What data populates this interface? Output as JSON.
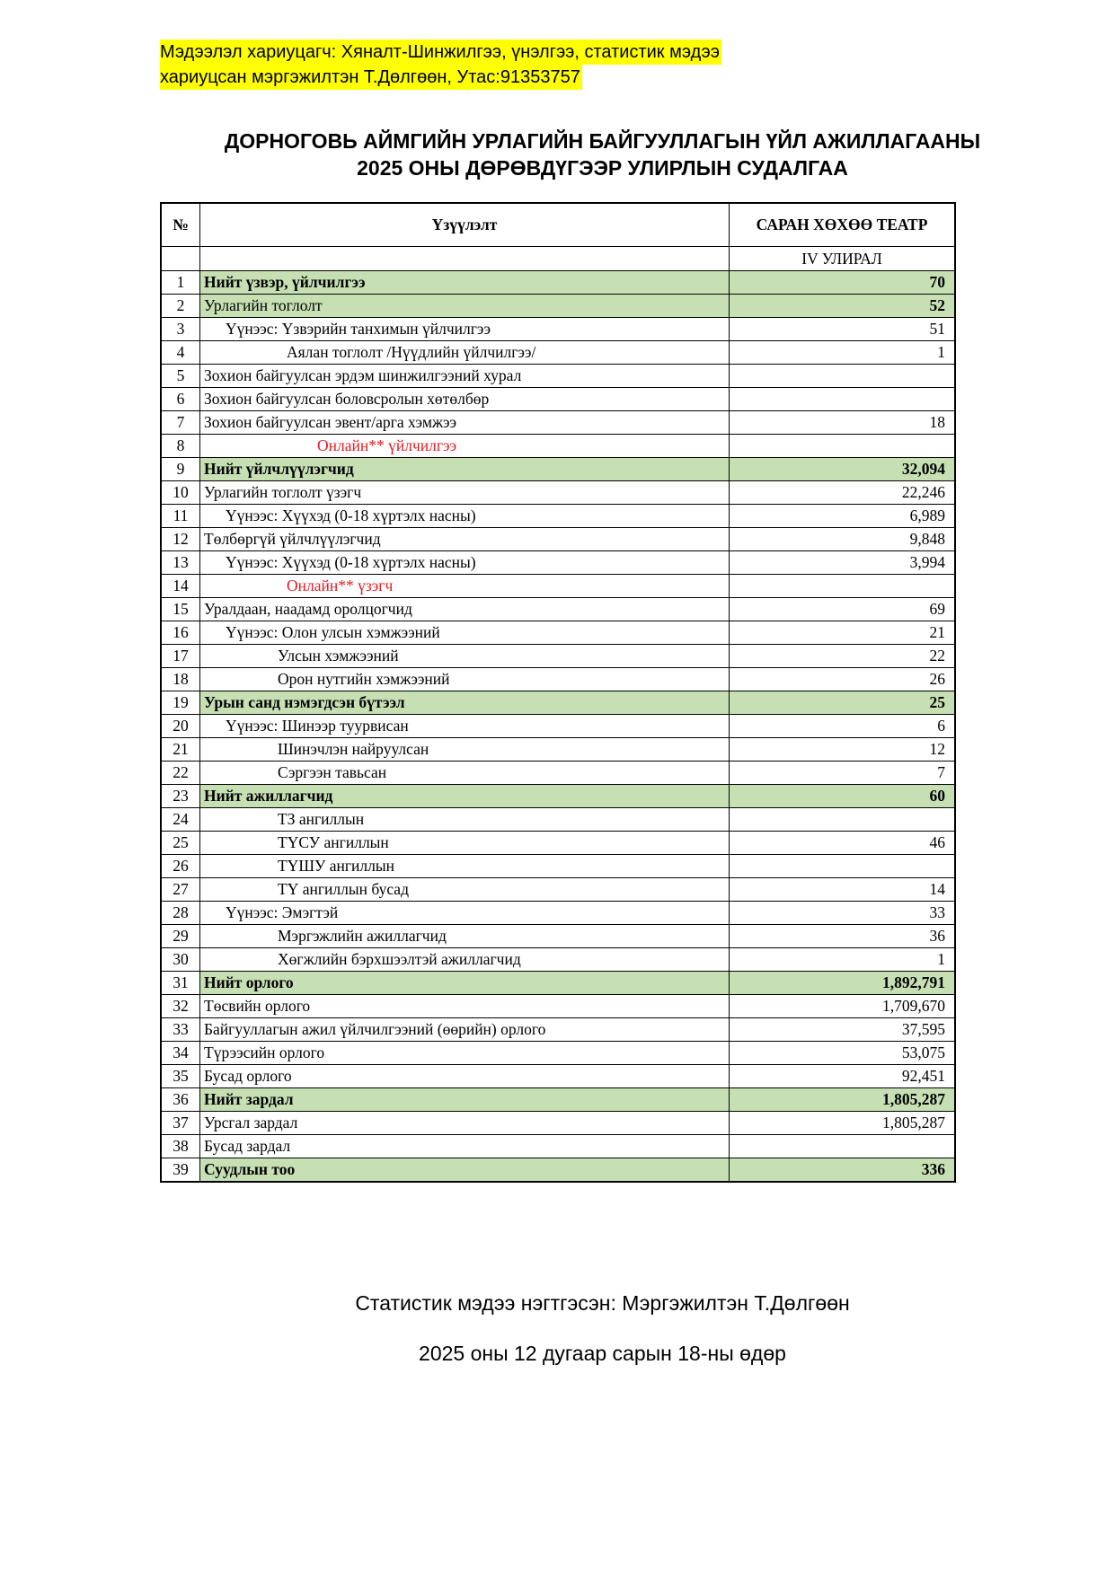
{
  "contact": {
    "line1": "Мэдээлэл хариуцагч: Хяналт-Шинжилгээ, үнэлгээ, статистик мэдээ",
    "line2": "хариуцсан мэргэжилтэн Т.Дөлгөөн, Утас:91353757"
  },
  "title": {
    "line1": "ДОРНОГОВЬ АЙМГИЙН УРЛАГИЙН БАЙГУУЛЛАГЫН ҮЙЛ АЖИЛЛАГААНЫ",
    "line2": "2025 ОНЫ ДӨРӨВДҮГЭЭР УЛИРЛЫН СУДАЛГАА"
  },
  "table": {
    "headers": {
      "num": "№",
      "indicator": "Үзүүлэлт",
      "org": "САРАН ХӨХӨӨ ТЕАТР"
    },
    "period": "IV УЛИРАЛ",
    "highlight_color": "#c6e0b4",
    "rows": [
      {
        "num": "1",
        "label": "Нийт үзвэр, үйлчилгээ",
        "value": "70",
        "level": 0,
        "bold_label": true,
        "bold_value": true,
        "green": true
      },
      {
        "num": "2",
        "label": "Урлагийн тоглолт",
        "value": "52",
        "level": 0,
        "bold_value": true,
        "green": true
      },
      {
        "num": "3",
        "label": "Үүнээс: Үзвэрийн танхимын үйлчилгээ",
        "value": "51",
        "level": 1
      },
      {
        "num": "4",
        "label": "Аялан тоглолт /Нүүдлийн үйлчилгээ/",
        "value": "1",
        "level": 3
      },
      {
        "num": "5",
        "label": "Зохион байгуулсан эрдэм шинжилгээний хурал",
        "value": "",
        "level": 0
      },
      {
        "num": "6",
        "label": "Зохион байгуулсан боловсролын хөтөлбөр",
        "value": "",
        "level": 0
      },
      {
        "num": "7",
        "label": "Зохион байгуулсан эвент/арга хэмжээ",
        "value": "18",
        "level": 0
      },
      {
        "num": "8",
        "label": "Онлайн** үйлчилгээ",
        "value": "",
        "level": 4,
        "red": true
      },
      {
        "num": "9",
        "label": "Нийт үйлчлүүлэгчид",
        "value": "32,094",
        "level": 0,
        "bold_label": true,
        "bold_value": true,
        "green": true
      },
      {
        "num": "10",
        "label": "Урлагийн тоглолт үзэгч",
        "value": "22,246",
        "level": 0
      },
      {
        "num": "11",
        "label": "Үүнээс: Хүүхэд (0-18 хүртэлх насны)",
        "value": "6,989",
        "level": 1
      },
      {
        "num": "12",
        "label": "Төлбөргүй үйлчлүүлэгчид",
        "value": "9,848",
        "level": 0
      },
      {
        "num": "13",
        "label": "Үүнээс: Хүүхэд (0-18 хүртэлх насны)",
        "value": "3,994",
        "level": 1
      },
      {
        "num": "14",
        "label": "Онлайн** үзэгч",
        "value": "",
        "level": 3,
        "red": true
      },
      {
        "num": "15",
        "label": "Уралдаан, наадамд оролцогчид",
        "value": "69",
        "level": 0
      },
      {
        "num": "16",
        "label": "Үүнээс: Олон улсын хэмжээний",
        "value": "21",
        "level": 1
      },
      {
        "num": "17",
        "label": "Улсын хэмжээний",
        "value": "22",
        "level": 2
      },
      {
        "num": "18",
        "label": "Орон нутгийн хэмжээний",
        "value": "26",
        "level": 2
      },
      {
        "num": "19",
        "label": "Урын санд нэмэгдсэн бүтээл",
        "value": "25",
        "level": 0,
        "bold_label": true,
        "bold_value": true,
        "green": true
      },
      {
        "num": "20",
        "label": "Үүнээс: Шинээр туурвисан",
        "value": "6",
        "level": 1
      },
      {
        "num": "21",
        "label": "Шинэчлэн найруулсан",
        "value": "12",
        "level": 2
      },
      {
        "num": "22",
        "label": "Сэргээн тавьсан",
        "value": "7",
        "level": 2
      },
      {
        "num": "23",
        "label": "Нийт ажиллагчид",
        "value": "60",
        "level": 0,
        "bold_label": true,
        "bold_value": true,
        "green": true
      },
      {
        "num": "24",
        "label": "ТЗ ангиллын",
        "value": "",
        "level": 2
      },
      {
        "num": "25",
        "label": "ТҮСУ ангиллын",
        "value": "46",
        "level": 2
      },
      {
        "num": "26",
        "label": "ТҮШУ ангиллын",
        "value": "",
        "level": 2
      },
      {
        "num": "27",
        "label": "ТҮ ангиллын бусад",
        "value": "14",
        "level": 2
      },
      {
        "num": "28",
        "label": "Үүнээс: Эмэгтэй",
        "value": "33",
        "level": 1
      },
      {
        "num": "29",
        "label": "Мэргэжлийн ажиллагчид",
        "value": "36",
        "level": 2
      },
      {
        "num": "30",
        "label": "Хөгжлийн бэрхшээлтэй ажиллагчид",
        "value": "1",
        "level": 2
      },
      {
        "num": "31",
        "label": "Нийт орлого",
        "value": "1,892,791",
        "level": 0,
        "bold_label": true,
        "bold_value": true,
        "green": true
      },
      {
        "num": "32",
        "label": "Төсвийн орлого",
        "value": "1,709,670",
        "level": 0
      },
      {
        "num": "33",
        "label": "Байгууллагын ажил үйлчилгээний (өөрийн) орлого",
        "value": "37,595",
        "level": 0
      },
      {
        "num": "34",
        "label": "Түрээсийн орлого",
        "value": "53,075",
        "level": 0
      },
      {
        "num": "35",
        "label": "Бусад орлого",
        "value": "92,451",
        "level": 0
      },
      {
        "num": "36",
        "label": "Нийт зардал",
        "value": "1,805,287",
        "level": 0,
        "bold_label": true,
        "bold_value": true,
        "green": true
      },
      {
        "num": "37",
        "label": "Урсгал зардал",
        "value": "1,805,287",
        "level": 0
      },
      {
        "num": "38",
        "label": "Бусад зардал",
        "value": "",
        "level": 0
      },
      {
        "num": "39",
        "label": "Суудлын тоо",
        "value": "336",
        "level": 0,
        "bold_label": true,
        "bold_value": true,
        "green": true
      }
    ]
  },
  "footer": {
    "compiled_by": "Статистик мэдээ нэгтгэсэн: Мэргэжилтэн Т.Дөлгөөн",
    "date": "2025 оны 12 дугаар сарын 18-ны өдөр"
  }
}
